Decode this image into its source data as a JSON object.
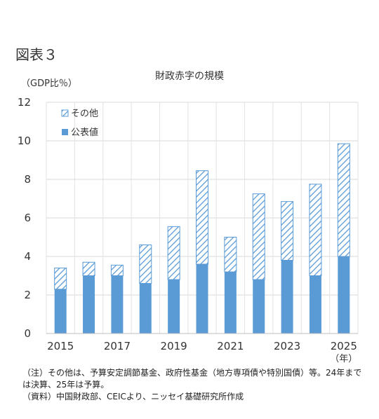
{
  "figure_label": "図表３",
  "chart_data": {
    "type": "bar",
    "stacked": true,
    "title": "財政赤字の規模",
    "ylabel": "（GDP比％）",
    "xlabel": "（年）",
    "ylim": [
      0,
      12
    ],
    "yticks": [
      0,
      2,
      4,
      6,
      8,
      10,
      12
    ],
    "categories": [
      "2015",
      "2016",
      "2017",
      "2018",
      "2019",
      "2020",
      "2021",
      "2022",
      "2023",
      "2024",
      "2025"
    ],
    "xtick_labels": [
      "2015",
      "2017",
      "2019",
      "2021",
      "2023",
      "2025"
    ],
    "grid": true,
    "legend_position": "top-left",
    "series": [
      {
        "name": "公表値",
        "color": "#5B9BD5",
        "pattern": "solid",
        "values": [
          2.3,
          3.0,
          3.0,
          2.6,
          2.8,
          3.6,
          3.2,
          2.8,
          3.8,
          3.0,
          4.0
        ]
      },
      {
        "name": "その他",
        "color": "#5B9BD5",
        "pattern": "hatched",
        "values": [
          1.1,
          0.7,
          0.55,
          2.0,
          2.75,
          4.85,
          1.8,
          4.45,
          3.05,
          4.75,
          5.85
        ]
      }
    ]
  },
  "notes": {
    "note": "（注）その他は、予算安定調節基金、政府性基金（地方専項債や特別国債）等。24年までは決算、25年は予算。",
    "source": "（資料）中国財政部、CEICより、ニッセイ基礎研究所作成"
  }
}
